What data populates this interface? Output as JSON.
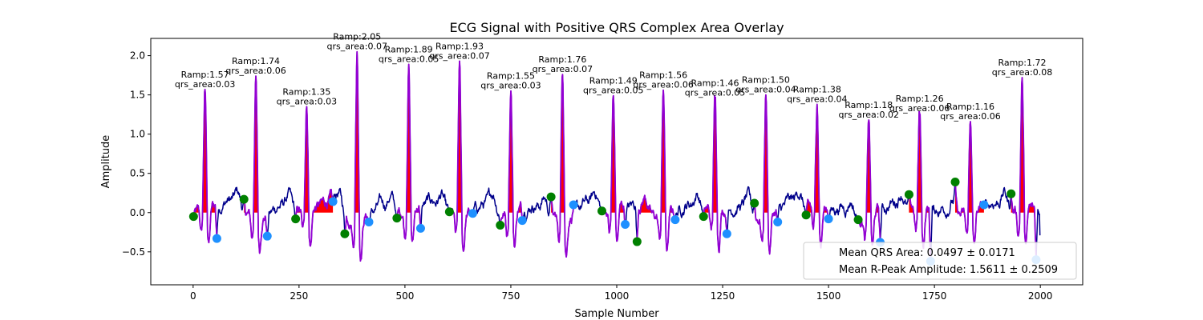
{
  "chart_data": {
    "type": "line",
    "title": "ECG Signal with Positive QRS Complex Area Overlay",
    "xlabel": "Sample Number",
    "ylabel": "Amplitude",
    "xlim": [
      -100,
      2100
    ],
    "ylim": [
      -0.92,
      2.22
    ],
    "xticks": [
      0,
      250,
      500,
      750,
      1000,
      1250,
      1500,
      1750,
      2000
    ],
    "yticks": [
      -0.5,
      0.0,
      0.5,
      1.0,
      1.5,
      2.0
    ],
    "ytick_labels": [
      "−0.5",
      "0.0",
      "0.5",
      "1.0",
      "1.5",
      "2.0"
    ],
    "grid": false,
    "legend_position": "lower-right",
    "colors": {
      "ecg_line": "#00008b",
      "qrs_segment": "#9400d3",
      "qrs_area_fill": "#ff0000",
      "q_onset_marker": "#008000",
      "s_offset_marker": "#1e90ff"
    },
    "beats": [
      {
        "r": 28,
        "ramp": 1.57,
        "area": 0.03,
        "on_x": 1,
        "on_y": -0.05,
        "off_x": 56,
        "off_y": -0.33
      },
      {
        "r": 148,
        "ramp": 1.74,
        "area": 0.06,
        "on_x": 120,
        "on_y": 0.17,
        "off_x": 175,
        "off_y": -0.3
      },
      {
        "r": 268,
        "ramp": 1.35,
        "area": 0.03,
        "on_x": 242,
        "on_y": -0.08,
        "off_x": 330,
        "off_y": 0.14
      },
      {
        "r": 387,
        "ramp": 2.05,
        "area": 0.07,
        "on_x": 358,
        "on_y": -0.27,
        "off_x": 415,
        "off_y": -0.12
      },
      {
        "r": 509,
        "ramp": 1.89,
        "area": 0.05,
        "on_x": 481,
        "on_y": -0.07,
        "off_x": 537,
        "off_y": -0.2
      },
      {
        "r": 629,
        "ramp": 1.93,
        "area": 0.07,
        "on_x": 605,
        "on_y": 0.01,
        "off_x": 660,
        "off_y": -0.01
      },
      {
        "r": 750,
        "ramp": 1.55,
        "area": 0.03,
        "on_x": 725,
        "on_y": -0.16,
        "off_x": 777,
        "off_y": -0.1
      },
      {
        "r": 872,
        "ramp": 1.76,
        "area": 0.07,
        "on_x": 845,
        "on_y": 0.2,
        "off_x": 898,
        "off_y": 0.1
      },
      {
        "r": 992,
        "ramp": 1.49,
        "area": 0.05,
        "on_x": 965,
        "on_y": 0.02,
        "off_x": 1020,
        "off_y": -0.15
      },
      {
        "r": 1110,
        "ramp": 1.56,
        "area": 0.06,
        "on_x": 1048,
        "on_y": -0.37,
        "off_x": 1138,
        "off_y": -0.09
      },
      {
        "r": 1232,
        "ramp": 1.46,
        "area": 0.05,
        "on_x": 1205,
        "on_y": -0.05,
        "off_x": 1260,
        "off_y": -0.27
      },
      {
        "r": 1352,
        "ramp": 1.5,
        "area": 0.04,
        "on_x": 1325,
        "on_y": 0.12,
        "off_x": 1380,
        "off_y": -0.12
      },
      {
        "r": 1473,
        "ramp": 1.38,
        "area": 0.04,
        "on_x": 1447,
        "on_y": -0.03,
        "off_x": 1500,
        "off_y": -0.08
      },
      {
        "r": 1595,
        "ramp": 1.18,
        "area": 0.02,
        "on_x": 1570,
        "on_y": -0.09,
        "off_x": 1622,
        "off_y": -0.38
      },
      {
        "r": 1715,
        "ramp": 1.26,
        "area": 0.06,
        "on_x": 1690,
        "on_y": 0.23,
        "off_x": 1741,
        "off_y": -0.62
      },
      {
        "r": 1835,
        "ramp": 1.16,
        "area": 0.06,
        "on_x": 1799,
        "on_y": 0.39,
        "off_x": 1867,
        "off_y": 0.1
      },
      {
        "r": 1957,
        "ramp": 1.72,
        "area": 0.08,
        "on_x": 1931,
        "on_y": 0.24,
        "off_x": 1990,
        "off_y": -0.6
      }
    ],
    "legend": [
      "Mean QRS Area: 0.0497 ± 0.0171",
      "Mean R-Peak Amplitude: 1.5611 ± 0.2509"
    ],
    "annotation_prefixes": {
      "ramp": "Ramp:",
      "area": "qrs_area:"
    }
  }
}
